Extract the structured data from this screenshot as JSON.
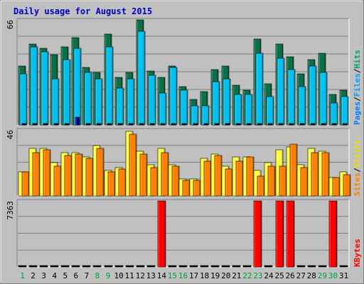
{
  "chart_data": {
    "type": "bar",
    "title": "Daily usage for August 2015",
    "categories": [
      "1",
      "2",
      "3",
      "4",
      "5",
      "6",
      "7",
      "8",
      "9",
      "10",
      "11",
      "12",
      "13",
      "14",
      "15",
      "16",
      "17",
      "18",
      "19",
      "20",
      "21",
      "22",
      "23",
      "24",
      "25",
      "26",
      "27",
      "28",
      "29",
      "30",
      "31"
    ],
    "weekend_days": [
      "1",
      "8",
      "9",
      "15",
      "16",
      "22",
      "23",
      "29",
      "30"
    ],
    "panels": [
      {
        "name": "pages-files-hits",
        "axis_max_label": "66",
        "ylim": [
          0,
          66
        ],
        "legend": [
          "Pages",
          "/",
          "Files",
          "/",
          "Hits"
        ],
        "series": [
          {
            "name": "Hits",
            "color": "#0a7048",
            "values": [
              37,
              51,
              48,
              44,
              49,
              55,
              36,
              33,
              57,
              30,
              33,
              66,
              34,
              30,
              37,
              24,
              16,
              21,
              35,
              37,
              25,
              22,
              54,
              26,
              51,
              43,
              32,
              41,
              45,
              19,
              22
            ]
          },
          {
            "name": "Files",
            "color": "#00c0f0",
            "values": [
              32,
              49,
              46,
              29,
              41,
              48,
              33,
              29,
              49,
              23,
              29,
              59,
              31,
              20,
              36,
              22,
              12,
              12,
              27,
              29,
              19,
              19,
              45,
              18,
              42,
              35,
              24,
              37,
              33,
              14,
              18
            ]
          },
          {
            "name": "Pages",
            "color": "#0000a0",
            "values": [
              1,
              1,
              1,
              1,
              1,
              5,
              1,
              1,
              1,
              1,
              1,
              1,
              1,
              1,
              1,
              1,
              1,
              1,
              1,
              1,
              1,
              1,
              1,
              1,
              1,
              1,
              1,
              1,
              1,
              1,
              1
            ]
          }
        ]
      },
      {
        "name": "visits-sites",
        "axis_max_label": "46",
        "ylim": [
          0,
          46
        ],
        "legend": [
          "Sites",
          "/",
          "Visits"
        ],
        "series": [
          {
            "name": "Visits",
            "color": "#ffff40",
            "values": [
              17,
              33,
              33,
              23,
              30,
              30,
              27,
              35,
              18,
              20,
              45,
              31,
              22,
              33,
              22,
              12,
              12,
              26,
              29,
              21,
              27,
              27,
              18,
              23,
              32,
              34,
              22,
              33,
              31,
              13,
              17
            ]
          },
          {
            "name": "Sites",
            "color": "#ff8000",
            "values": [
              17,
              30,
              32,
              21,
              28,
              29,
              26,
              33,
              17,
              19,
              43,
              29,
              20,
              30,
              21,
              11,
              11,
              24,
              28,
              19,
              24,
              27,
              14,
              21,
              21,
              36,
              20,
              30,
              30,
              13,
              15
            ]
          }
        ]
      },
      {
        "name": "kbytes",
        "axis_max_label": "7363",
        "ylim": [
          0,
          7363
        ],
        "legend": [
          "KBytes"
        ],
        "series": [
          {
            "name": "KBytes",
            "color": "#ff0000",
            "values": [
              40,
              40,
              40,
              40,
              40,
              40,
              40,
              40,
              40,
              40,
              40,
              40,
              40,
              7363,
              40,
              40,
              40,
              40,
              40,
              40,
              40,
              40,
              7363,
              40,
              7363,
              7363,
              40,
              40,
              120,
              7363,
              40
            ]
          }
        ]
      }
    ]
  },
  "colors": {
    "background": "#c0c0c0",
    "title": "#0000c0",
    "grid": "#808080",
    "day_weekday": "#000000",
    "day_weekend": "#00a040",
    "legend_sep": "#000000"
  }
}
